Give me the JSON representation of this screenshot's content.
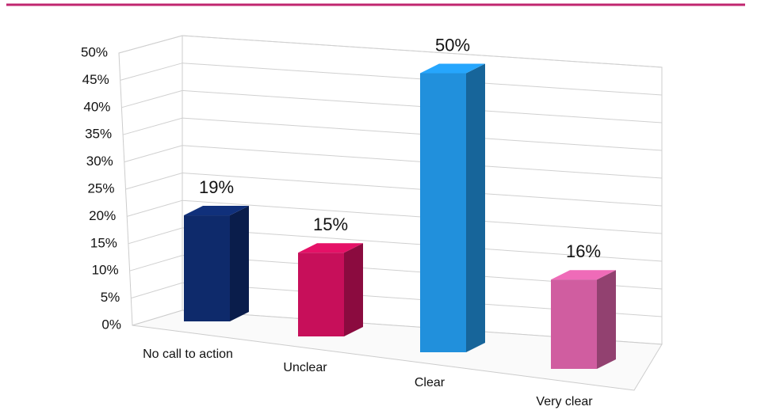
{
  "chart_data": {
    "type": "bar",
    "categories": [
      "No call to action",
      "Unclear",
      "Clear",
      "Very clear"
    ],
    "values": [
      19,
      15,
      50,
      16
    ],
    "value_labels": [
      "19%",
      "15%",
      "50%",
      "16%"
    ],
    "colors": [
      "#0e2a6b",
      "#c70f5a",
      "#2190dc",
      "#d05da0"
    ],
    "ylim": [
      0,
      50
    ],
    "yticks": [
      {
        "value": 0,
        "label": "0%"
      },
      {
        "value": 5,
        "label": "5%"
      },
      {
        "value": 10,
        "label": "10%"
      },
      {
        "value": 15,
        "label": "15%"
      },
      {
        "value": 20,
        "label": "20%"
      },
      {
        "value": 25,
        "label": "25%"
      },
      {
        "value": 30,
        "label": "30%"
      },
      {
        "value": 35,
        "label": "35%"
      },
      {
        "value": 40,
        "label": "40%"
      },
      {
        "value": 45,
        "label": "45%"
      },
      {
        "value": 50,
        "label": "50%"
      }
    ],
    "grid": true
  }
}
